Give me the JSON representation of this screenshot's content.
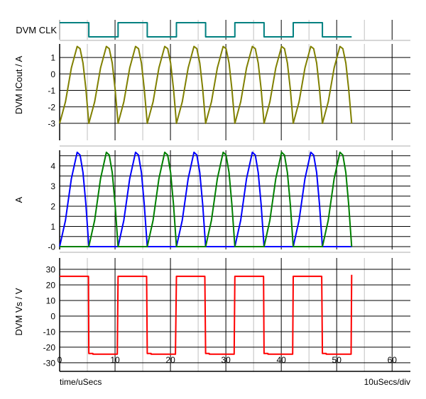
{
  "chart_data": [
    {
      "type": "line",
      "ylabel": "DVM CLK",
      "ylim": [
        -0.2,
        1.2
      ],
      "grid": true,
      "series": [
        {
          "color": "#008080",
          "points": [
            [
              0,
              1
            ],
            [
              5.27,
              1
            ],
            [
              5.27,
              0
            ],
            [
              10.54,
              0
            ],
            [
              10.54,
              1
            ],
            [
              15.81,
              1
            ],
            [
              15.81,
              0
            ],
            [
              21.08,
              0
            ],
            [
              21.08,
              1
            ],
            [
              26.35,
              1
            ],
            [
              26.35,
              0
            ],
            [
              31.62,
              0
            ],
            [
              31.62,
              1
            ],
            [
              36.89,
              1
            ],
            [
              36.89,
              0
            ],
            [
              42.16,
              0
            ],
            [
              42.16,
              1
            ],
            [
              47.43,
              1
            ],
            [
              47.43,
              0
            ],
            [
              52.7,
              0
            ]
          ]
        }
      ]
    },
    {
      "type": "line",
      "ylabel": "DVM ICout / A",
      "ylim": [
        -4.03,
        1.82
      ],
      "yticks": [
        "1",
        "0",
        "-1",
        "-2",
        "-3"
      ],
      "ytick_values": [
        1,
        0,
        -1,
        -2,
        -3
      ],
      "grid": true,
      "series": [
        {
          "color": "#808000",
          "values": [
            -3,
            -1.7,
            0.36,
            1.67,
            1.53,
            0.66,
            -0.92,
            -3,
            -1.7,
            0.36,
            1.67,
            1.53,
            0.66,
            -0.92,
            -3,
            -1.7,
            0.36,
            1.67,
            1.53,
            0.66,
            -0.92,
            -3,
            -1.7,
            0.36,
            1.67,
            1.53,
            0.66,
            -0.92,
            -3,
            -1.7,
            0.36,
            1.67,
            1.53,
            0.66,
            -0.92,
            -3,
            -1.7,
            0.36,
            1.67,
            1.53,
            0.66,
            -0.92,
            -3,
            -1.7,
            0.36,
            1.67,
            1.53,
            0.66,
            -0.92,
            -3,
            -1.7,
            0.36,
            1.67,
            1.53,
            0.66,
            -0.92,
            -3,
            -1.7,
            0.36,
            1.67,
            1.53,
            0.66,
            -0.92,
            -3,
            -1.7,
            0.36,
            1.67,
            1.53,
            0.66,
            -0.92,
            -3
          ]
        }
      ]
    },
    {
      "type": "line",
      "ylabel": "A",
      "ylim": [
        -0.14,
        4.77
      ],
      "yticks": [
        "4",
        "3",
        "2",
        "1",
        "-0"
      ],
      "ytick_values": [
        4,
        3,
        2,
        1,
        0
      ],
      "grid": true,
      "series": [
        {
          "color": "#0000ff",
          "values": [
            0,
            1.3,
            3.36,
            4.67,
            4.53,
            3.66,
            2.08,
            0,
            0,
            0,
            0,
            0,
            0,
            0,
            0,
            1.3,
            3.36,
            4.67,
            4.53,
            3.66,
            2.08,
            0,
            0,
            0,
            0,
            0,
            0,
            0,
            0,
            1.3,
            3.36,
            4.67,
            4.53,
            3.66,
            2.08,
            0,
            0,
            0,
            0,
            0,
            0,
            0,
            0,
            1.3,
            3.36,
            4.67,
            4.53,
            3.66,
            2.08,
            0,
            0,
            0,
            0,
            0,
            0,
            0,
            0,
            1.3,
            3.36,
            4.67,
            4.53,
            3.66,
            2.08,
            0,
            0,
            0,
            0,
            0,
            0,
            0,
            0
          ]
        },
        {
          "color": "#008000",
          "values": [
            0,
            0,
            0,
            0,
            0,
            0,
            0,
            0,
            1.3,
            3.36,
            4.67,
            4.53,
            3.66,
            2.08,
            0,
            0,
            0,
            0,
            0,
            0,
            0,
            0,
            1.3,
            3.36,
            4.67,
            4.53,
            3.66,
            2.08,
            0,
            0,
            0,
            0,
            0,
            0,
            0,
            0,
            1.3,
            3.36,
            4.67,
            4.53,
            3.66,
            2.08,
            0,
            0,
            0,
            0,
            0,
            0,
            0,
            0,
            1.3,
            3.36,
            4.67,
            4.53,
            3.66,
            2.08,
            0,
            0,
            0,
            0,
            0,
            0,
            0,
            0,
            1.3,
            3.36,
            4.67,
            4.53,
            3.66,
            2.08,
            0
          ]
        }
      ]
    },
    {
      "type": "line",
      "ylabel": "DVM Vs / V",
      "ylim": [
        -35.5,
        37.3
      ],
      "yticks": [
        "30",
        "20",
        "10",
        "0",
        "-10",
        "-20",
        "-30"
      ],
      "ytick_values": [
        30,
        20,
        10,
        0,
        -10,
        -20,
        -30
      ],
      "grid": true,
      "series": [
        {
          "color": "#ff0000",
          "points": [
            [
              0,
              25.5
            ],
            [
              5.2,
              25.5
            ],
            [
              5.27,
              -24
            ],
            [
              6,
              -24
            ],
            [
              6,
              -24.5
            ],
            [
              10.4,
              -24.5
            ],
            [
              10.54,
              25.5
            ],
            [
              15.7,
              25.5
            ],
            [
              15.81,
              -24
            ],
            [
              16.5,
              -24
            ],
            [
              16.5,
              -24.5
            ],
            [
              20.9,
              -24.5
            ],
            [
              21.08,
              25.5
            ],
            [
              26.2,
              25.5
            ],
            [
              26.35,
              -24
            ],
            [
              27,
              -24
            ],
            [
              27,
              -24.5
            ],
            [
              31.5,
              -24.5
            ],
            [
              31.62,
              25.5
            ],
            [
              36.8,
              25.5
            ],
            [
              36.89,
              -24
            ],
            [
              37.6,
              -24
            ],
            [
              37.6,
              -24.5
            ],
            [
              42.05,
              -24.5
            ],
            [
              42.16,
              25.5
            ],
            [
              47.3,
              25.5
            ],
            [
              47.43,
              -24
            ],
            [
              48.1,
              -24
            ],
            [
              48.1,
              -24.5
            ],
            [
              52.6,
              -24.5
            ],
            [
              52.7,
              26.5
            ]
          ]
        }
      ]
    }
  ],
  "shared_x": {
    "xlim": [
      0,
      63.3
    ],
    "xlabel": "time/uSecs",
    "scale_label": "10uSecs/div",
    "xticks": [
      "0",
      "10",
      "20",
      "30",
      "40",
      "50",
      "60"
    ],
    "xtick_values": [
      0,
      10,
      20,
      30,
      40,
      50,
      60
    ],
    "times": [
      0,
      1.05,
      2.11,
      3.16,
      3.69,
      4.22,
      4.74,
      5.27,
      6.32,
      7.38,
      8.43,
      8.96,
      9.49,
      10.01,
      10.54,
      11.59,
      12.65,
      13.7,
      14.23,
      14.76,
      15.28,
      15.81,
      16.86,
      17.92,
      18.97,
      19.5,
      20.03,
      20.55,
      21.08,
      22.13,
      23.19,
      24.24,
      24.77,
      25.3,
      25.82,
      26.35,
      27.4,
      28.46,
      29.51,
      30.04,
      30.57,
      31.09,
      31.62,
      32.67,
      33.73,
      34.78,
      35.31,
      35.84,
      36.36,
      36.89,
      37.94,
      39,
      40.05,
      40.58,
      41.11,
      41.63,
      42.16,
      43.21,
      44.27,
      45.32,
      45.85,
      46.38,
      46.9,
      47.43,
      48.48,
      49.54,
      50.59,
      51.12,
      51.65,
      52.17,
      52.7
    ]
  }
}
